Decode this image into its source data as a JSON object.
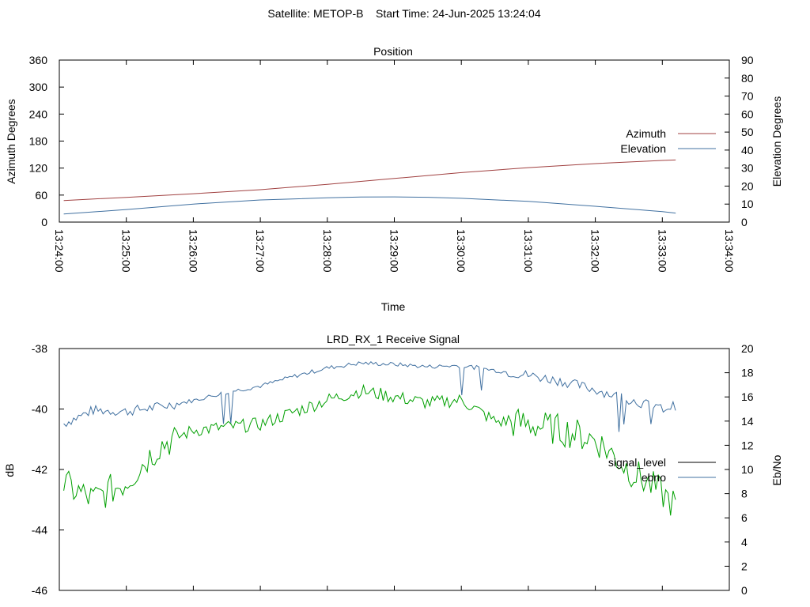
{
  "header": {
    "title": "Satellite: METOP-B    Start Time: 24-Jun-2025 13:24:04"
  },
  "chart_data": [
    {
      "type": "line",
      "title": "Position",
      "xlabel": "Time",
      "ylabel": "Azimuth Degrees",
      "y2label": "Elevation Degrees",
      "x_ticks": [
        "13:24:00",
        "13:25:00",
        "13:26:00",
        "13:27:00",
        "13:28:00",
        "13:29:00",
        "13:30:00",
        "13:31:00",
        "13:32:00",
        "13:33:00",
        "13:34:00"
      ],
      "xlim": [
        "13:24:00",
        "13:34:00"
      ],
      "ylim": [
        0,
        360
      ],
      "y_ticks": [
        0,
        60,
        120,
        180,
        240,
        300,
        360
      ],
      "y2lim": [
        0,
        90
      ],
      "y2_ticks": [
        0,
        10,
        20,
        30,
        40,
        50,
        60,
        70,
        80,
        90
      ],
      "legend_position": "right",
      "grid": false,
      "series": [
        {
          "name": "Azimuth",
          "axis": "y",
          "color": "#a04040",
          "x": [
            "13:24:04",
            "13:25:00",
            "13:26:00",
            "13:27:00",
            "13:28:00",
            "13:29:00",
            "13:30:00",
            "13:31:00",
            "13:32:00",
            "13:33:00",
            "13:33:12"
          ],
          "values": [
            48,
            55,
            63,
            72,
            84,
            97,
            110,
            121,
            130,
            137,
            138
          ]
        },
        {
          "name": "Elevation",
          "axis": "y2",
          "color": "#4070a0",
          "x": [
            "13:24:04",
            "13:25:00",
            "13:26:00",
            "13:27:00",
            "13:28:00",
            "13:28:30",
            "13:29:00",
            "13:29:30",
            "13:30:00",
            "13:31:00",
            "13:32:00",
            "13:33:00",
            "13:33:12"
          ],
          "values": [
            4.5,
            7,
            10,
            12.3,
            13.5,
            13.9,
            14,
            13.8,
            13.2,
            11.5,
            8.8,
            5.8,
            5
          ]
        }
      ]
    },
    {
      "type": "line",
      "title": "LRD_RX_1 Receive Signal",
      "xlabel": "",
      "ylabel": "dB",
      "y2label": "Eb/No",
      "xlim": [
        "13:24:00",
        "13:34:00"
      ],
      "ylim": [
        -46,
        -38
      ],
      "y_ticks": [
        -46,
        -44,
        -42,
        -40,
        -38
      ],
      "y2lim": [
        0,
        20
      ],
      "y2_ticks": [
        0,
        2,
        4,
        6,
        8,
        10,
        12,
        14,
        16,
        18,
        20
      ],
      "legend_position": "right",
      "grid": false,
      "series": [
        {
          "name": "signal_level",
          "axis": "y",
          "color": "#000000",
          "x": [],
          "values": []
        },
        {
          "name": "ebno",
          "axis": "y2",
          "color": "#4070a0",
          "x": [
            "13:24:04",
            "13:24:30",
            "13:25:00",
            "13:25:30",
            "13:26:00",
            "13:26:30",
            "13:27:00",
            "13:27:30",
            "13:28:00",
            "13:28:30",
            "13:29:00",
            "13:29:30",
            "13:30:00",
            "13:30:30",
            "13:31:00",
            "13:31:30",
            "13:32:00",
            "13:32:30",
            "13:33:00",
            "13:33:12"
          ],
          "values": [
            13.8,
            14.9,
            14.8,
            15.2,
            15.7,
            16.4,
            16.9,
            17.7,
            18.4,
            18.8,
            18.7,
            18.5,
            18.6,
            18.2,
            17.8,
            17.3,
            16.6,
            15.8,
            15.0,
            15.3
          ]
        },
        {
          "name": "",
          "axis": "y",
          "color": "#00a000",
          "x": [
            "13:24:04",
            "13:24:30",
            "13:25:00",
            "13:25:30",
            "13:26:00",
            "13:26:30",
            "13:27:00",
            "13:27:30",
            "13:28:00",
            "13:28:30",
            "13:29:00",
            "13:29:30",
            "13:30:00",
            "13:30:30",
            "13:31:00",
            "13:31:30",
            "13:32:00",
            "13:32:30",
            "13:33:00",
            "13:33:12"
          ],
          "values": [
            -42.5,
            -43.0,
            -42.4,
            -41.2,
            -40.7,
            -40.6,
            -40.5,
            -40.1,
            -39.7,
            -39.4,
            -39.6,
            -39.8,
            -39.7,
            -40.4,
            -40.5,
            -40.7,
            -41.0,
            -42.0,
            -42.8,
            -43.2
          ]
        }
      ]
    }
  ]
}
